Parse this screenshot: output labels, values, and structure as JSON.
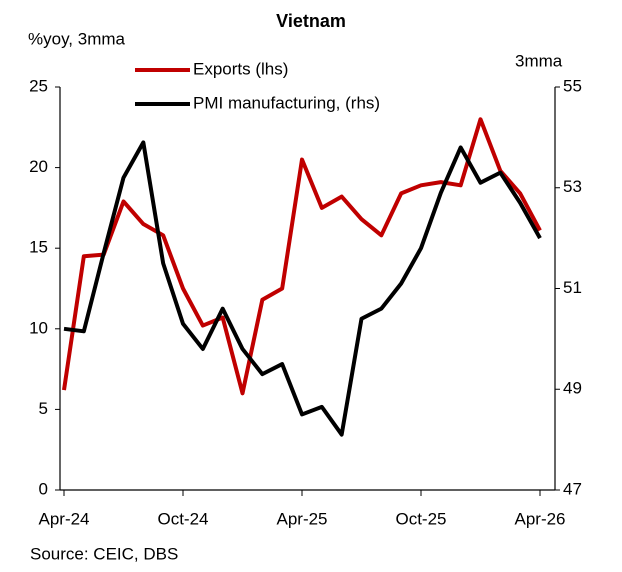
{
  "chart_data": {
    "type": "line",
    "title": "Vietnam",
    "y_label": "%yoy, 3mma",
    "y2_label": "3mma",
    "source": "Source: CEIC, DBS",
    "categories": [
      "Apr-24",
      null,
      null,
      null,
      null,
      null,
      "Oct-24",
      null,
      null,
      null,
      null,
      null,
      "Apr-25",
      null,
      null,
      null,
      null,
      null,
      "Oct-25",
      null,
      null,
      null,
      null,
      null,
      "Apr-26"
    ],
    "series": [
      {
        "name": "Exports (lhs)",
        "color": "#c00000",
        "values": [
          6.2,
          14.5,
          14.6,
          17.9,
          16.5,
          15.8,
          12.5,
          10.2,
          10.7,
          6.0,
          11.8,
          12.5,
          20.5,
          17.5,
          18.2,
          16.8,
          15.8,
          18.4,
          18.9,
          19.1,
          18.9,
          23.0,
          19.8,
          18.4,
          16.1
        ]
      },
      {
        "name": "PMI manufacturing, (rhs)",
        "color": "#000000",
        "axis": "y2",
        "values": [
          50.2,
          50.15,
          51.7,
          53.2,
          53.9,
          51.5,
          50.3,
          49.8,
          50.6,
          49.8,
          49.3,
          49.5,
          48.5,
          48.65,
          48.1,
          50.4,
          50.6,
          51.1,
          51.8,
          52.9,
          53.8,
          53.1,
          53.3,
          52.7,
          52.0
        ]
      }
    ],
    "ylim": [
      0,
      25
    ],
    "yticks": [
      0,
      5,
      10,
      15,
      20,
      25
    ],
    "y2lim": [
      47,
      55
    ],
    "y2ticks": [
      47,
      49,
      51,
      53,
      55
    ],
    "grid": false
  }
}
